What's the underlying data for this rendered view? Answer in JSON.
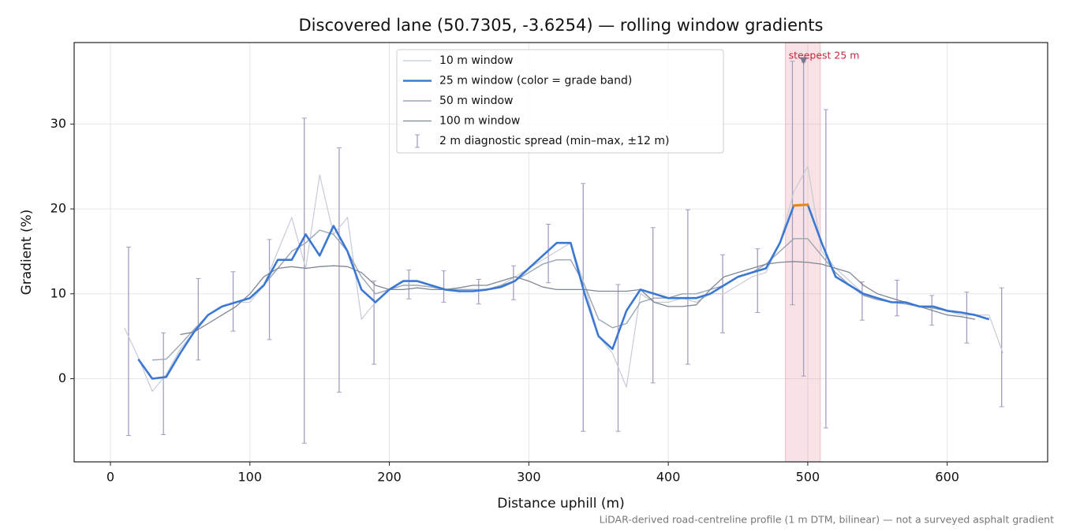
{
  "chart_data": {
    "type": "line",
    "title": "Discovered lane (50.7305, -3.6254) — rolling window gradients",
    "xlabel": "Distance uphill (m)",
    "ylabel": "Gradient (%)",
    "footnote": "LiDAR-derived road-centreline profile (1 m DTM, bilinear) — not a surveyed asphalt gradient",
    "xlim": [
      -26,
      672
    ],
    "ylim": [
      -9.8,
      39.6
    ],
    "xticks": [
      0,
      100,
      200,
      300,
      400,
      500,
      600
    ],
    "yticks": [
      0,
      10,
      20,
      30
    ],
    "grid": true,
    "legend": "upper center",
    "x": [
      10,
      20,
      30,
      40,
      50,
      60,
      70,
      80,
      90,
      100,
      110,
      120,
      130,
      140,
      150,
      160,
      170,
      180,
      190,
      200,
      210,
      220,
      230,
      240,
      250,
      260,
      270,
      280,
      290,
      300,
      310,
      320,
      330,
      340,
      350,
      360,
      370,
      380,
      390,
      400,
      410,
      420,
      430,
      440,
      450,
      460,
      470,
      480,
      490,
      500,
      510,
      520,
      530,
      540,
      550,
      560,
      570,
      580,
      590,
      600,
      610,
      620,
      630,
      640
    ],
    "series": [
      {
        "name": "10 m window",
        "color": "#c5ccd6",
        "width": 1.2,
        "values": [
          6.0,
          2.5,
          -1.5,
          0.5,
          3.5,
          5.5,
          7.5,
          8.5,
          9,
          9,
          11,
          15,
          19,
          13,
          24,
          17,
          19,
          7,
          9,
          10.5,
          11.5,
          11.5,
          11,
          10.5,
          10.5,
          10.5,
          10.5,
          11,
          12,
          13,
          14,
          15,
          16,
          11,
          5,
          3,
          -1,
          10,
          9,
          9,
          9.5,
          9,
          10,
          10,
          11,
          12,
          12.5,
          16,
          22,
          25,
          15,
          13,
          11.5,
          10,
          9.5,
          9,
          9,
          8.5,
          8.5,
          8,
          7.5,
          7.5,
          7.5,
          3
        ]
      },
      {
        "name": "25 m window (color = grade band)",
        "color": "#3a78d4",
        "width": 2.6,
        "bands": [
          {
            "min": 20,
            "color": "#e08a1e"
          }
        ],
        "values": [
          null,
          2.3,
          0,
          0.2,
          3,
          5.5,
          7.5,
          8.5,
          9,
          9.5,
          11,
          14,
          14,
          17,
          14.5,
          18,
          15,
          10.5,
          9,
          10.5,
          11.5,
          11.5,
          11,
          10.5,
          10.3,
          10.3,
          10.5,
          10.8,
          11.5,
          13,
          14.5,
          16,
          16,
          10,
          5,
          3.5,
          8,
          10.5,
          10,
          9.5,
          9.5,
          9.5,
          10,
          11,
          12,
          12.5,
          13,
          16,
          20.4,
          20.5,
          16,
          12,
          11,
          10,
          9.5,
          9,
          9,
          8.5,
          8.5,
          8,
          7.8,
          7.5,
          7,
          null
        ]
      },
      {
        "name": "50 m window",
        "color": "#9aa6b4",
        "width": 1.4,
        "values": [
          null,
          null,
          2.2,
          2.3,
          4,
          5.8,
          7.5,
          8.5,
          9,
          9.5,
          11,
          13,
          15,
          16,
          17.5,
          17,
          15,
          12,
          10,
          10.5,
          11,
          11,
          10.8,
          10.5,
          10.5,
          10.5,
          10.5,
          11,
          11.5,
          12.5,
          13.5,
          14,
          14,
          11,
          7,
          6,
          6.5,
          9,
          9.5,
          9.5,
          10,
          10,
          10.5,
          11,
          12,
          12.5,
          13.5,
          15,
          16.5,
          16.5,
          14.5,
          12.5,
          11,
          9.8,
          9.3,
          9,
          8.8,
          8.5,
          8.3,
          8,
          7.8,
          7.5,
          null,
          null
        ]
      },
      {
        "name": "100 m window",
        "color": "#7f8794",
        "width": 1.3,
        "values": [
          null,
          null,
          null,
          null,
          5.2,
          5.5,
          6.5,
          7.5,
          8.5,
          10,
          12,
          13,
          13.2,
          13,
          13.2,
          13.3,
          13.2,
          12.5,
          11,
          10.5,
          10.5,
          10.7,
          10.5,
          10.5,
          10.7,
          11,
          11,
          11.5,
          12,
          11.5,
          10.8,
          10.5,
          10.5,
          10.5,
          10.3,
          10.3,
          10.3,
          10.5,
          9,
          8.5,
          8.5,
          8.7,
          10.5,
          12,
          12.5,
          13,
          13.5,
          13.7,
          13.8,
          13.7,
          13.5,
          13,
          12.5,
          11,
          10,
          9.5,
          9,
          8.5,
          8,
          7.5,
          7.3,
          7,
          null,
          null
        ]
      }
    ],
    "errorbars": {
      "name": "2 m diagnostic spread (min–max, ±12 m)",
      "color": "#a59cc0",
      "x": [
        13,
        38,
        63,
        88,
        114,
        139,
        164,
        189,
        214,
        239,
        264,
        289,
        314,
        339,
        364,
        389,
        414,
        439,
        464,
        489,
        497,
        513,
        539,
        564,
        589,
        614,
        639
      ],
      "high": [
        15.5,
        5.4,
        11.8,
        12.6,
        16.4,
        30.7,
        27.2,
        11.5,
        12.8,
        12.7,
        11.7,
        13.3,
        18.2,
        23.0,
        11.1,
        17.8,
        19.9,
        14.6,
        15.3,
        37.4,
        37.3,
        31.7,
        11.4,
        11.6,
        9.8,
        10.2,
        10.7
      ],
      "low": [
        -6.7,
        -6.6,
        2.2,
        5.6,
        4.6,
        -7.6,
        -1.6,
        1.7,
        9.4,
        9.0,
        8.8,
        9.3,
        11.3,
        -6.2,
        -6.2,
        -0.5,
        1.7,
        5.4,
        7.8,
        8.7,
        0.3,
        -5.8,
        6.9,
        7.4,
        6.3,
        4.2,
        -3.3
      ]
    },
    "highlight": {
      "from": 484,
      "to": 509,
      "label": "steepest 25 m",
      "color": "#e8a0a8",
      "marker_x": 497,
      "marker_y": 37.5
    }
  }
}
